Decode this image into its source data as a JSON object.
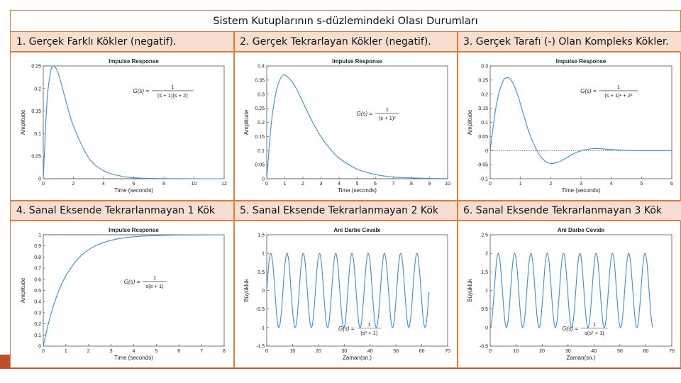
{
  "page": {
    "title": "Sistem Kutuplarının s-düzlemindeki Olası Durumları"
  },
  "colors": {
    "accent": "#E07B39",
    "header_bg": "#F8DDD1",
    "curve": "#3E8FCB",
    "footer": "#C0502A"
  },
  "headers": [
    "1. Gerçek Farklı Kökler (negatif).",
    "2. Gerçek Tekrarlayan Kökler (negatif).",
    "3. Gerçek Tarafı (-) Olan Kompleks Kökler.",
    "4. Sanal Eksende Tekrarlanmayan 1 Kök",
    "5. Sanal Eksende Tekrarlanmayan 2 Kök",
    "6. Sanal Eksende Tekrarlanmayan 3 Kök"
  ],
  "chart_data": [
    {
      "type": "line",
      "title": "Impulse Response",
      "xlabel": "Time (seconds)",
      "ylabel": "Amplitude",
      "xlim": [
        0,
        12
      ],
      "ylim": [
        0,
        0.25
      ],
      "xticks": [
        0,
        2,
        4,
        6,
        8,
        10,
        12
      ],
      "yticks": [
        0,
        0.05,
        0.1,
        0.15,
        0.2,
        0.25
      ],
      "xtick_labels": [
        "0",
        "2",
        "4",
        "6",
        "8",
        "10",
        "12"
      ],
      "ytick_labels": [
        "0",
        "0.05",
        "0.1",
        "0.15",
        "0.2",
        "0.25"
      ],
      "formula": {
        "lhs": "G(s) =",
        "num": "1",
        "den": "(s + 1)(s + 2)"
      },
      "series": [
        {
          "x": [
            0,
            0.25,
            0.5,
            0.69,
            1,
            1.5,
            2,
            3,
            4,
            5,
            6,
            8,
            10,
            12
          ],
          "y": [
            0,
            0.172,
            0.239,
            0.25,
            0.233,
            0.173,
            0.117,
            0.047,
            0.018,
            0.007,
            0.002,
            0.0003,
            0,
            0
          ]
        }
      ],
      "final_value": 0
    },
    {
      "type": "line",
      "title": "Impulse Response",
      "xlabel": "Time (seconds)",
      "ylabel": "Amplitude",
      "xlim": [
        0,
        10
      ],
      "ylim": [
        0,
        0.4
      ],
      "xticks": [
        0,
        1,
        2,
        3,
        4,
        5,
        6,
        7,
        8,
        9,
        10
      ],
      "yticks": [
        0,
        0.05,
        0.1,
        0.15,
        0.2,
        0.25,
        0.3,
        0.35,
        0.4
      ],
      "xtick_labels": [
        "0",
        "1",
        "2",
        "3",
        "4",
        "5",
        "6",
        "7",
        "8",
        "9",
        "10"
      ],
      "ytick_labels": [
        "0",
        "0.05",
        "0.1",
        "0.15",
        "0.2",
        "0.25",
        "0.3",
        "0.35",
        "0.4"
      ],
      "formula": {
        "lhs": "G(s) =",
        "num": "1",
        "den": "(s + 1)²"
      },
      "series": [
        {
          "x": [
            0,
            0.25,
            0.5,
            0.75,
            1,
            1.5,
            2,
            2.5,
            3,
            3.5,
            4,
            5,
            6,
            7,
            8,
            9,
            10
          ],
          "y": [
            0,
            0.195,
            0.303,
            0.354,
            0.368,
            0.335,
            0.271,
            0.205,
            0.149,
            0.106,
            0.073,
            0.034,
            0.015,
            0.006,
            0.003,
            0.001,
            0.0005
          ]
        }
      ],
      "final_value": 0
    },
    {
      "type": "line",
      "title": "Impulse Response",
      "xlabel": "Time (seconds)",
      "ylabel": "Amplitude",
      "xlim": [
        0,
        6
      ],
      "ylim": [
        -0.1,
        0.3
      ],
      "xticks": [
        0,
        1,
        2,
        3,
        4,
        5,
        6
      ],
      "yticks": [
        -0.1,
        -0.05,
        0,
        0.05,
        0.1,
        0.15,
        0.2,
        0.25,
        0.3
      ],
      "xtick_labels": [
        "0",
        "1",
        "2",
        "3",
        "4",
        "5",
        "6"
      ],
      "ytick_labels": [
        "-0.1",
        "-0.05",
        "0",
        "0.05",
        "0.1",
        "0.15",
        "0.2",
        "0.25",
        "0.3"
      ],
      "formula": {
        "lhs": "G(s) =",
        "num": "1",
        "den": "(s + 1)² + 2²"
      },
      "series": [
        {
          "x": [
            0,
            0.2,
            0.4,
            0.55,
            0.7,
            0.9,
            1.1,
            1.3,
            1.6,
            1.9,
            2.2,
            2.5,
            2.8,
            3.1,
            3.4,
            3.7,
            4.0,
            4.4,
            4.8,
            5.2,
            5.6,
            6.0
          ],
          "y": [
            0,
            0.16,
            0.241,
            0.258,
            0.249,
            0.2,
            0.128,
            0.06,
            -0.011,
            -0.043,
            -0.043,
            -0.027,
            -0.009,
            0.002,
            0.007,
            0.006,
            0.004,
            0.001,
            0,
            0,
            0,
            0
          ]
        }
      ],
      "final_value": 0
    },
    {
      "type": "line",
      "title": "Impulse Response",
      "xlabel": "Time (seconds)",
      "ylabel": "Amplitude",
      "xlim": [
        0,
        8
      ],
      "ylim": [
        0,
        1
      ],
      "xticks": [
        0,
        1,
        2,
        3,
        4,
        5,
        6,
        7,
        8
      ],
      "yticks": [
        0,
        0.1,
        0.2,
        0.3,
        0.4,
        0.5,
        0.6,
        0.7,
        0.8,
        0.9,
        1
      ],
      "xtick_labels": [
        "0",
        "1",
        "2",
        "3",
        "4",
        "5",
        "6",
        "7",
        "8"
      ],
      "ytick_labels": [
        "0",
        "0.1",
        "0.2",
        "0.3",
        "0.4",
        "0.5",
        "0.6",
        "0.7",
        "0.8",
        "0.9",
        "1"
      ],
      "formula": {
        "lhs": "G(s) =",
        "num": "1",
        "den": "s(s + 1)"
      },
      "series": [
        {
          "x": [
            0,
            0.25,
            0.5,
            0.75,
            1,
            1.5,
            2,
            2.5,
            3,
            3.5,
            4,
            5,
            6,
            7,
            8
          ],
          "y": [
            0,
            0.221,
            0.393,
            0.528,
            0.632,
            0.777,
            0.865,
            0.918,
            0.95,
            0.97,
            0.982,
            0.993,
            0.998,
            0.999,
            1
          ]
        }
      ],
      "final_value": 1
    },
    {
      "type": "line",
      "title": "Ani Darbe Cevabı",
      "xlabel": "Zaman(sn.)",
      "ylabel": "Büyüklük",
      "xlim": [
        0,
        70
      ],
      "ylim": [
        -1.5,
        1.5
      ],
      "xticks": [
        0,
        10,
        20,
        30,
        40,
        50,
        60,
        70
      ],
      "yticks": [
        -1.5,
        -1,
        -0.5,
        0,
        0.5,
        1,
        1.5
      ],
      "xtick_labels": [
        "0",
        "10",
        "20",
        "30",
        "40",
        "50",
        "60",
        "70"
      ],
      "ytick_labels": [
        "-1.5",
        "-1",
        "-0.5",
        "0",
        "0.5",
        "1",
        "1.5"
      ],
      "formula": {
        "lhs": "G(s) =",
        "num": "1",
        "den": "(s² + 1)"
      },
      "series": [
        {
          "function": "sin(t)",
          "x_range": [
            0,
            62.8
          ],
          "amplitude": 1,
          "offset": 0
        }
      ]
    },
    {
      "type": "line",
      "title": "Ani Darbe Cevabı",
      "xlabel": "Zaman(sn.)",
      "ylabel": "Büyüklük",
      "xlim": [
        0,
        70
      ],
      "ylim": [
        -0.5,
        2.5
      ],
      "xticks": [
        0,
        10,
        20,
        30,
        40,
        50,
        60,
        70
      ],
      "yticks": [
        -0.5,
        0,
        0.5,
        1,
        1.5,
        2,
        2.5
      ],
      "xtick_labels": [
        "0",
        "10",
        "20",
        "30",
        "40",
        "50",
        "60",
        "70"
      ],
      "ytick_labels": [
        "-0.5",
        "0",
        "0.5",
        "1",
        "1.5",
        "2",
        "2.5"
      ],
      "formula": {
        "lhs": "G(s) =",
        "num": "1",
        "den": "s(s² + 1)"
      },
      "series": [
        {
          "function": "1 - cos(t)",
          "x_range": [
            0,
            62.8
          ],
          "amplitude": 1,
          "offset": 1
        }
      ]
    }
  ]
}
